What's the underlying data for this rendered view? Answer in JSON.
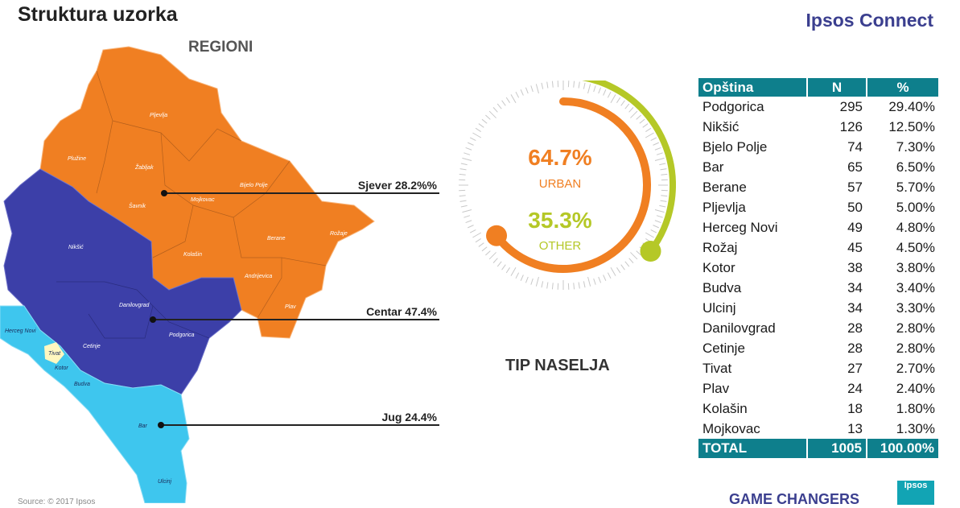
{
  "header": {
    "title": "Struktura uzorka",
    "brand": "Ipsos Connect"
  },
  "map": {
    "title": "REGIONI",
    "colors": {
      "north": "#f07f22",
      "center": "#3c3fa8",
      "south": "#3ec6ee"
    },
    "regions": [
      {
        "label": "Sjever 28.2%%"
      },
      {
        "label": "Centar 47.4%"
      },
      {
        "label": "Jug  24.4%"
      }
    ],
    "municipalities": [
      "Pljevlja",
      "Plužine",
      "Žabljak",
      "Bijelo Polje",
      "Šavnik",
      "Mojkovac",
      "Berane",
      "Rožaje",
      "Nikšić",
      "Kolašin",
      "Andrijevica",
      "Plav",
      "Danilovgrad",
      "Podgorica",
      "Herceg Novi",
      "Tivat",
      "Kotor",
      "Cetinje",
      "Budva",
      "Bar",
      "Ulcinj"
    ]
  },
  "gauge": {
    "urban_value": "64.7%",
    "urban_label": "URBAN",
    "other_value": "35.3%",
    "other_label": "OTHER",
    "urban_fraction": 0.647,
    "other_fraction": 0.353,
    "urban_color": "#f07f22",
    "other_color": "#b5c827",
    "caption": "TIP NASELJA"
  },
  "table": {
    "headers": [
      "Opština",
      "N",
      "%"
    ],
    "rows": [
      [
        "Podgorica",
        "295",
        "29.40%"
      ],
      [
        "Nikšić",
        "126",
        "12.50%"
      ],
      [
        "Bjelo Polje",
        "74",
        "7.30%"
      ],
      [
        "Bar",
        "65",
        "6.50%"
      ],
      [
        "Berane",
        "57",
        "5.70%"
      ],
      [
        "Pljevlja",
        "50",
        "5.00%"
      ],
      [
        "Herceg Novi",
        "49",
        "4.80%"
      ],
      [
        "Rožaj",
        "45",
        "4.50%"
      ],
      [
        "Kotor",
        "38",
        "3.80%"
      ],
      [
        "Budva",
        "34",
        "3.40%"
      ],
      [
        "Ulcinj",
        "34",
        "3.30%"
      ],
      [
        "Danilovgrad",
        "28",
        "2.80%"
      ],
      [
        "Cetinje",
        "28",
        "2.80%"
      ],
      [
        "Tivat",
        "27",
        "2.70%"
      ],
      [
        "Plav",
        "24",
        "2.40%"
      ],
      [
        "Kolašin",
        "18",
        "1.80%"
      ],
      [
        "Mojkovac",
        "13",
        "1.30%"
      ]
    ],
    "total": [
      "TOTAL",
      "1005",
      "100.00%"
    ]
  },
  "footer": {
    "tagline": "GAME CHANGERS",
    "source": "Source:  © 2017 Ipsos",
    "logo": "Ipsos"
  }
}
